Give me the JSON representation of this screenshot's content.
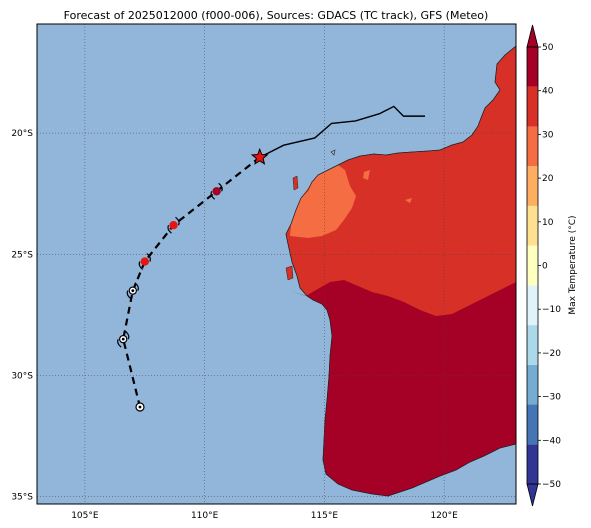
{
  "title": "Forecast of 2025012000 (f000-006), Sources: GDACS (TC track), GFS (Meteo)",
  "map": {
    "lon_range": [
      103,
      123
    ],
    "lat_range": [
      -35.3,
      -15.5
    ],
    "lon_ticks": [
      {
        "value": 105,
        "label": "105°E"
      },
      {
        "value": 110,
        "label": "110°E"
      },
      {
        "value": 115,
        "label": "115°E"
      },
      {
        "value": 120,
        "label": "120°E"
      }
    ],
    "lat_ticks": [
      {
        "value": -20,
        "label": "20°S"
      },
      {
        "value": -25,
        "label": "25°S"
      },
      {
        "value": -30,
        "label": "30°S"
      },
      {
        "value": -35,
        "label": "35°S"
      }
    ],
    "ocean_color": "#92b5da",
    "gridlines": true
  },
  "colorbar": {
    "label": "Max Temperature (°C)",
    "range": [
      -50,
      50
    ],
    "ticks": [
      {
        "value": 50,
        "label": "50"
      },
      {
        "value": 40,
        "label": "40"
      },
      {
        "value": 30,
        "label": "30"
      },
      {
        "value": 20,
        "label": "20"
      },
      {
        "value": 10,
        "label": "10"
      },
      {
        "value": 0,
        "label": "0"
      },
      {
        "value": -10,
        "label": "−10"
      },
      {
        "value": -20,
        "label": "−20"
      },
      {
        "value": -30,
        "label": "−30"
      },
      {
        "value": -40,
        "label": "−40"
      },
      {
        "value": -50,
        "label": "−50"
      }
    ],
    "colors": [
      "#313695",
      "#4575b4",
      "#74add1",
      "#abd9e9",
      "#e0f3f8",
      "#ffffbf",
      "#fee090",
      "#fdae61",
      "#f46d43",
      "#d73027",
      "#a50026"
    ]
  },
  "track": {
    "past_points": [
      {
        "lon": 112.3,
        "lat": -21.0
      },
      {
        "lon": 110.5,
        "lat": -22.4
      },
      {
        "lon": 108.7,
        "lat": -23.8
      },
      {
        "lon": 107.5,
        "lat": -25.3
      },
      {
        "lon": 107.0,
        "lat": -26.5
      },
      {
        "lon": 106.6,
        "lat": -28.5
      },
      {
        "lon": 107.3,
        "lat": -31.3
      }
    ],
    "current_position": {
      "lon": 112.3,
      "lat": -21.0
    },
    "storm_symbols": [
      {
        "lon": 110.5,
        "lat": -22.4,
        "category": "strong",
        "color": "#a50026"
      },
      {
        "lon": 108.7,
        "lat": -23.8,
        "category": "storm",
        "color": "#e8140f"
      },
      {
        "lon": 107.5,
        "lat": -25.3,
        "category": "storm",
        "color": "#e8140f"
      },
      {
        "lon": 107.0,
        "lat": -26.5,
        "category": "depression",
        "color": "#ffffff"
      },
      {
        "lon": 106.6,
        "lat": -28.5,
        "category": "depression",
        "color": "#ffffff"
      },
      {
        "lon": 107.3,
        "lat": -31.3,
        "category": "low",
        "color": "#ffffff"
      }
    ],
    "prior_track": [
      {
        "lon": 112.3,
        "lat": -21.0
      },
      {
        "lon": 113.3,
        "lat": -20.5
      },
      {
        "lon": 114.6,
        "lat": -20.2
      },
      {
        "lon": 115.3,
        "lat": -19.6
      },
      {
        "lon": 116.3,
        "lat": -19.5
      },
      {
        "lon": 117.3,
        "lat": -19.2
      },
      {
        "lon": 117.9,
        "lat": -18.9
      },
      {
        "lon": 118.3,
        "lat": -19.3
      },
      {
        "lon": 119.2,
        "lat": -19.3
      }
    ]
  }
}
